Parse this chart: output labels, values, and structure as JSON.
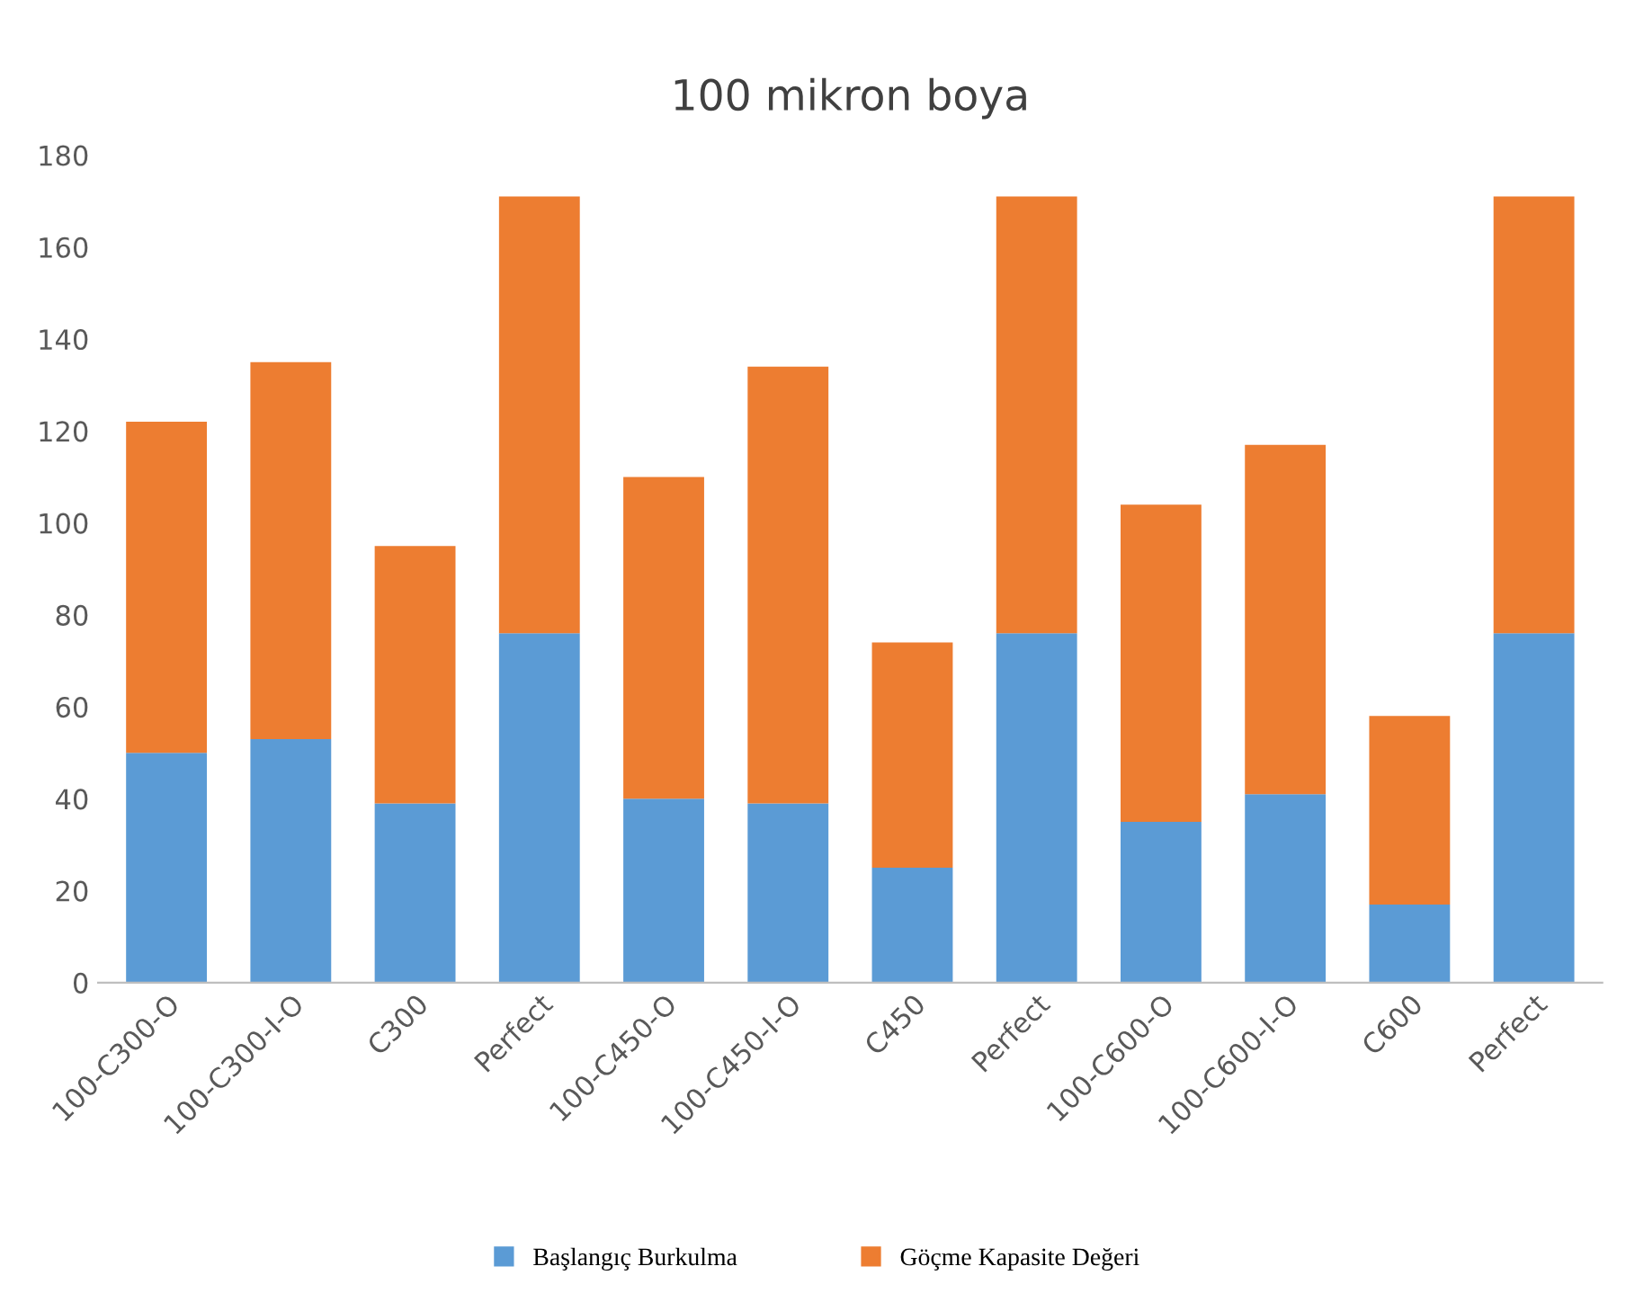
{
  "chart_data": {
    "type": "bar",
    "title": "100 mikron boya",
    "stacked": true,
    "categories": [
      "100-C300-O",
      "100-C300-I-O",
      "C300",
      "Perfect",
      "100-C450-O",
      "100-C450-I-O",
      "C450",
      "Perfect",
      "100-C600-O",
      "100-C600-I-O",
      "C600",
      "Perfect"
    ],
    "series": [
      {
        "name": "Başlangıç Burkulma",
        "color": "#5b9bd5",
        "values": [
          50,
          53,
          39,
          76,
          40,
          39,
          25,
          76,
          35,
          41,
          17,
          76
        ]
      },
      {
        "name": "Göçme Kapasite Değeri",
        "color": "#ed7d31",
        "values": [
          72,
          82,
          56,
          95,
          70,
          95,
          49,
          95,
          69,
          76,
          41,
          95
        ]
      }
    ],
    "ylim": [
      0,
      180
    ],
    "yticks": [
      0,
      20,
      40,
      60,
      80,
      100,
      120,
      140,
      160,
      180
    ],
    "grid": false,
    "legend": "bottom"
  }
}
